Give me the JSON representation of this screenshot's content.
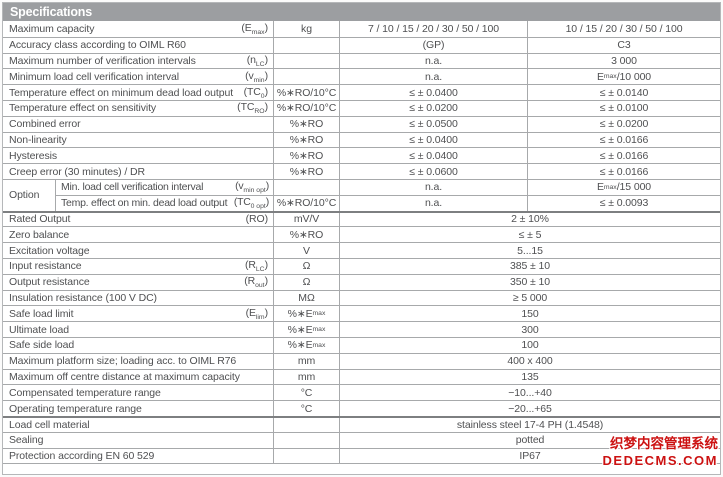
{
  "page": {
    "title": "Specifications"
  },
  "colors": {
    "header_bg": "#9c9ea1",
    "row_border": "#a7a9ab",
    "section_border": "#7d7f81",
    "text": "#4f5052",
    "watermark_red": "#cc1111"
  },
  "table": {
    "section1": [
      {
        "label": "Maximum capacity",
        "symbol": "(E~max~)",
        "unit": "kg",
        "gp": "7 / 10 / 15 / 20 / 30 / 50 / 100",
        "c3": "10 / 15 / 20 / 30 / 50 / 100"
      },
      {
        "label": "Accuracy class according to OIML R60",
        "symbol": "",
        "unit": "",
        "gp": "(GP)",
        "c3": "C3"
      },
      {
        "label": "Maximum number of verification intervals",
        "symbol": "(n~LC~)",
        "unit": "",
        "gp": "n.a.",
        "c3": "3 000"
      },
      {
        "label": "Minimum load cell verification interval",
        "symbol": "(v~min~)",
        "unit": "",
        "gp": "n.a.",
        "c3": "E~max~ /10 000"
      },
      {
        "label": "Temperature effect on minimum dead load output",
        "symbol": "(TC~0~)",
        "unit": "%∗RO/10°C",
        "gp": "≤ ± 0.0400",
        "c3": "≤ ± 0.0140"
      },
      {
        "label": "Temperature effect on sensitivity",
        "symbol": "(TC~RO~)",
        "unit": "%∗RO/10°C",
        "gp": "≤ ± 0.0200",
        "c3": "≤ ± 0.0100"
      },
      {
        "label": "Combined error",
        "symbol": "",
        "unit": "%∗RO",
        "gp": "≤ ± 0.0500",
        "c3": "≤ ± 0.0200"
      },
      {
        "label": "Non-linearity",
        "symbol": "",
        "unit": "%∗RO",
        "gp": "≤ ± 0.0400",
        "c3": "≤ ± 0.0166"
      },
      {
        "label": "Hysteresis",
        "symbol": "",
        "unit": "%∗RO",
        "gp": "≤ ± 0.0400",
        "c3": "≤ ± 0.0166"
      },
      {
        "label": "Creep error (30 minutes) / DR",
        "symbol": "",
        "unit": "%∗RO",
        "gp": "≤ ± 0.0600",
        "c3": "≤ ± 0.0166"
      }
    ],
    "option": {
      "label": "Option",
      "rows": [
        {
          "label": "Min. load cell verification interval",
          "symbol": "(v~min opt~)",
          "unit": "",
          "gp": "n.a.",
          "c3": "E~max~ /15 000"
        },
        {
          "label": "Temp. effect on min. dead load output",
          "symbol": "(TC~0 opt~)",
          "unit": "%∗RO/10°C",
          "gp": "n.a.",
          "c3": "≤ ± 0.0093"
        }
      ]
    },
    "section3": [
      {
        "label": "Rated Output",
        "symbol": "(RO)",
        "unit": "mV/V",
        "value": "2 ± 10%"
      },
      {
        "label": "Zero balance",
        "symbol": "",
        "unit": "%∗RO",
        "value": "≤ ± 5"
      },
      {
        "label": "Excitation voltage",
        "symbol": "",
        "unit": "V",
        "value": "5...15"
      },
      {
        "label": "Input resistance",
        "symbol": "(R~LC~)",
        "unit": "Ω",
        "value": "385 ± 10"
      },
      {
        "label": "Output resistance",
        "symbol": "(R~out~)",
        "unit": "Ω",
        "value": "350 ± 10"
      },
      {
        "label": "Insulation resistance (100 V DC)",
        "symbol": "",
        "unit": "MΩ",
        "value": "≥ 5 000"
      },
      {
        "label": "Safe load limit",
        "symbol": "(E~lim~)",
        "unit": "%∗E~max~",
        "value": "150"
      },
      {
        "label": "Ultimate load",
        "symbol": "",
        "unit": "%∗E~max~",
        "value": "300"
      },
      {
        "label": "Safe side load",
        "symbol": "",
        "unit": "%∗E~max~",
        "value": "100"
      },
      {
        "label": "Maximum platform size; loading acc. to OIML R76",
        "symbol": "",
        "unit": "mm",
        "value": "400 x 400"
      },
      {
        "label": "Maximum off centre distance at maximum capacity",
        "symbol": "",
        "unit": "mm",
        "value": "135"
      },
      {
        "label": "Compensated temperature range",
        "symbol": "",
        "unit": "°C",
        "value": "−10...+40"
      },
      {
        "label": "Operating temperature range",
        "symbol": "",
        "unit": "°C",
        "value": "−20...+65"
      }
    ],
    "section4": [
      {
        "label": "Load cell material",
        "symbol": "",
        "unit": "",
        "value": "stainless steel 17-4 PH (1.4548)"
      },
      {
        "label": "Sealing",
        "symbol": "",
        "unit": "",
        "value": "potted"
      },
      {
        "label": "Protection according EN 60 529",
        "symbol": "",
        "unit": "",
        "value": "IP67"
      }
    ]
  },
  "watermark": {
    "line1": "织梦内容管理系统",
    "line2": "DEDECMS.COM"
  }
}
